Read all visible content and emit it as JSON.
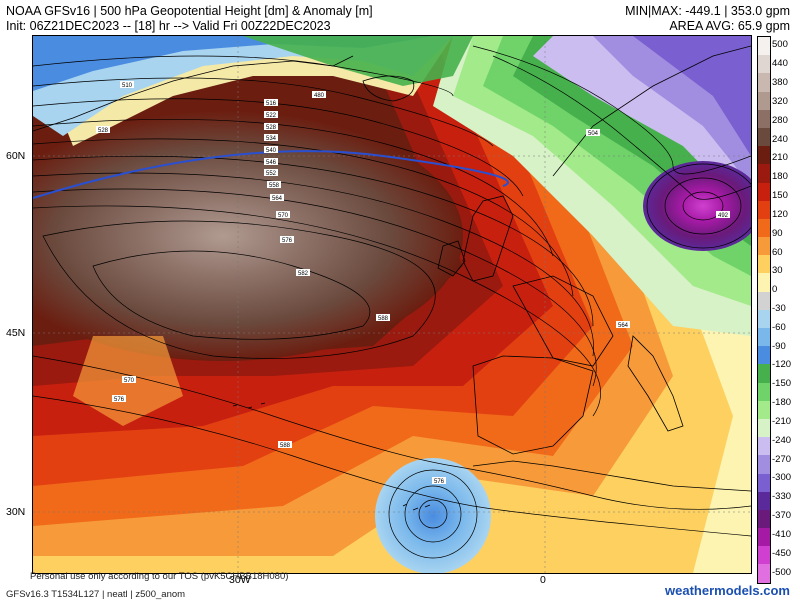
{
  "header": {
    "title_line1": "NOAA GFSv16 | 500 hPa Geopotential Height [dm] & Anomaly [m]",
    "title_line2": "Init: 06Z21DEC2023 -- [18] hr --> Valid Fri 00Z22DEC2023",
    "minmax": "MIN|MAX: -449.1 | 353.0 gpm",
    "area_avg": "AREA AVG: 65.9 gpm"
  },
  "axes": {
    "lat_labels": [
      "60N",
      "45N",
      "30N"
    ],
    "lon_labels": [
      "30W",
      "0"
    ]
  },
  "contour_labels": [
    "516",
    "522",
    "528",
    "534",
    "540",
    "546",
    "552",
    "558",
    "564",
    "570",
    "576",
    "582",
    "588",
    "570",
    "576",
    "588",
    "576",
    "510",
    "480",
    "504",
    "564",
    "492",
    "528"
  ],
  "colorbar": {
    "labels": [
      "500",
      "440",
      "380",
      "320",
      "280",
      "240",
      "210",
      "180",
      "150",
      "120",
      "90",
      "60",
      "30",
      "0",
      "-30",
      "-60",
      "-90",
      "-120",
      "-150",
      "-180",
      "-210",
      "-240",
      "-270",
      "-300",
      "-330",
      "-370",
      "-410",
      "-450",
      "-500"
    ],
    "colors": [
      "#f4f1ef",
      "#e0d6d1",
      "#c9b8b0",
      "#b09a90",
      "#8c7066",
      "#6b4a3e",
      "#6b1e10",
      "#9a1a0f",
      "#c8200f",
      "#e34012",
      "#f06a1a",
      "#f79b3a",
      "#fdd060",
      "#fcf4b0",
      "#d2d2d2",
      "#a8d4f0",
      "#7ab8ec",
      "#4a8ce0",
      "#46b14c",
      "#6fd36a",
      "#a2ea8a",
      "#d6f2c6",
      "#cbbdf0",
      "#a28ee0",
      "#7a5fd0",
      "#5a2a9a",
      "#6a1a7a",
      "#a51aa5",
      "#d040d0",
      "#e070e0"
    ]
  },
  "footer": {
    "disclaimer": "Personal use only according to our TOS (pvK5CHBB18H080)",
    "model_info": "GFSv16.3 T1534L127 | neatl | z500_anom",
    "credit": "weathermodels.com"
  }
}
